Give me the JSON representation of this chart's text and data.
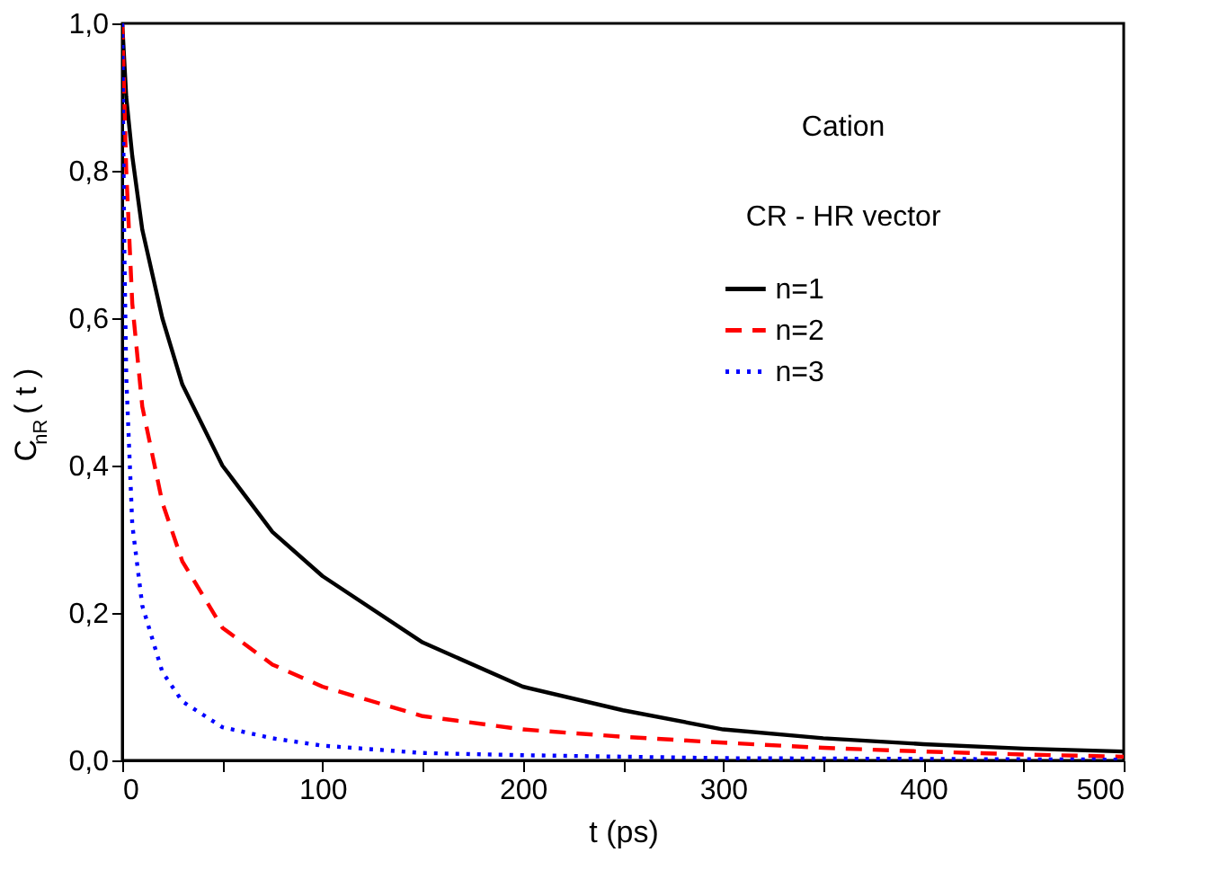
{
  "chart_data": {
    "type": "line",
    "xlabel": "t (ps)",
    "ylabel": "C$_{nR}$ ( t )",
    "annotations": [
      "Cation",
      "CR - HR vector"
    ],
    "xlim": [
      0,
      500
    ],
    "ylim": [
      0,
      1
    ],
    "xticks": [
      0,
      {
        "value": 50,
        "label": null
      },
      100,
      {
        "value": 150,
        "label": null
      },
      200,
      {
        "value": 250,
        "label": null
      },
      300,
      {
        "value": 350,
        "label": null
      },
      400,
      {
        "value": 450,
        "label": null
      },
      500
    ],
    "yticks": [
      {
        "value": 0,
        "label": "0,0"
      },
      {
        "value": 0.2,
        "label": "0,2"
      },
      {
        "value": 0.4,
        "label": "0,4"
      },
      {
        "value": 0.6,
        "label": "0,6"
      },
      {
        "value": 0.8,
        "label": "0,8"
      },
      {
        "value": 1,
        "label": "1,0"
      }
    ],
    "grid": false,
    "legend": "right",
    "marker": "none",
    "series": [
      {
        "name": "n=1",
        "color": "#000000",
        "line_style": "solid",
        "x": [
          0,
          2,
          5,
          10,
          20,
          30,
          50,
          75,
          100,
          150,
          200,
          250,
          300,
          350,
          400,
          450,
          500
        ],
        "values": [
          1.0,
          0.9,
          0.82,
          0.72,
          0.6,
          0.51,
          0.4,
          0.31,
          0.25,
          0.16,
          0.1,
          0.068,
          0.042,
          0.03,
          0.022,
          0.016,
          0.012
        ]
      },
      {
        "name": "n=2",
        "color": "#ff0000",
        "line_style": "dashed",
        "x": [
          0,
          2,
          5,
          10,
          20,
          30,
          50,
          75,
          100,
          150,
          200,
          250,
          300,
          350,
          400,
          450,
          500
        ],
        "values": [
          1.0,
          0.8,
          0.62,
          0.48,
          0.35,
          0.27,
          0.18,
          0.13,
          0.1,
          0.06,
          0.042,
          0.032,
          0.024,
          0.017,
          0.012,
          0.008,
          0.005
        ]
      },
      {
        "name": "n=3",
        "color": "#0000ff",
        "line_style": "dotted",
        "x": [
          0,
          1,
          2,
          5,
          10,
          20,
          30,
          50,
          75,
          100,
          150,
          200,
          250,
          300,
          400,
          500
        ],
        "values": [
          1.0,
          0.7,
          0.52,
          0.32,
          0.21,
          0.12,
          0.08,
          0.045,
          0.03,
          0.02,
          0.01,
          0.007,
          0.005,
          0.003,
          0.002,
          0.001
        ]
      }
    ]
  }
}
